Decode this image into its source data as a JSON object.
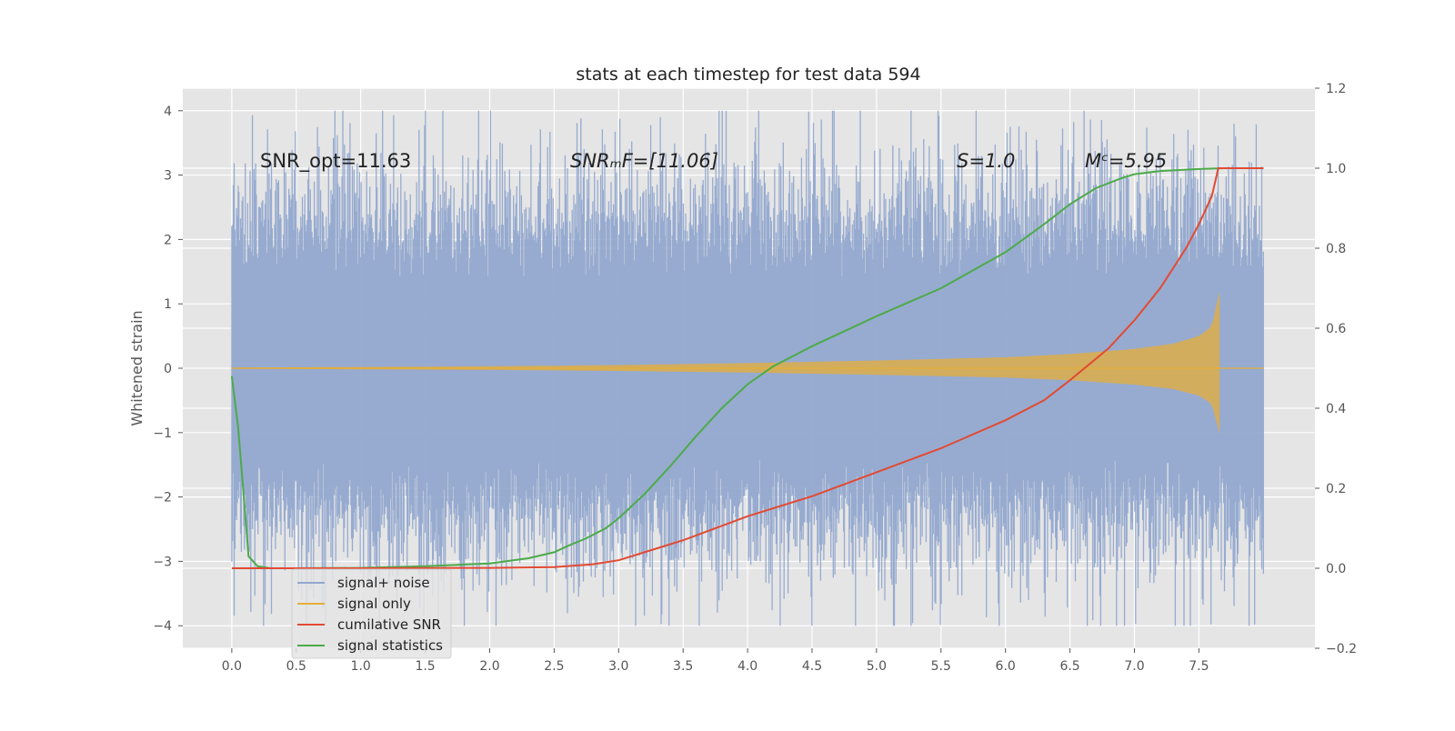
{
  "chart_data": {
    "type": "line",
    "title": "stats at each timestep for test data 594",
    "ylabel": "Whitened strain",
    "xlim": [
      -0.38,
      8.4
    ],
    "ylim": [
      -4.35,
      4.35
    ],
    "y2lim": [
      -0.2,
      1.2
    ],
    "xticks": [
      "0.0",
      "0.5",
      "1.0",
      "1.5",
      "2.0",
      "2.5",
      "3.0",
      "3.5",
      "4.0",
      "4.5",
      "5.0",
      "5.5",
      "6.0",
      "6.5",
      "7.0",
      "7.5"
    ],
    "xtick_values": [
      0.0,
      0.5,
      1.0,
      1.5,
      2.0,
      2.5,
      3.0,
      3.5,
      4.0,
      4.5,
      5.0,
      5.5,
      6.0,
      6.5,
      7.0,
      7.5
    ],
    "yticks": [
      "4",
      "3",
      "2",
      "1",
      "0",
      "−1",
      "−2",
      "−3",
      "−4"
    ],
    "ytick_values": [
      4,
      3,
      2,
      1,
      0,
      -1,
      -2,
      -3,
      -4
    ],
    "y2ticks": [
      "1.2",
      "1.0",
      "0.8",
      "0.6",
      "0.4",
      "0.2",
      "0.0",
      "−0.2"
    ],
    "y2tick_values": [
      1.2,
      1.0,
      0.8,
      0.6,
      0.4,
      0.2,
      0.0,
      -0.2
    ],
    "grid": true,
    "legend_position": "lower-left",
    "annotations": [
      {
        "text": "SNR_opt=11.63",
        "x": 0.2,
        "y": 3.1
      },
      {
        "text": "SNRₘF=[11.06]",
        "x": 2.6,
        "y": 3.1
      },
      {
        "text": "S=1.0",
        "x": 5.6,
        "y": 3.1
      },
      {
        "text": "Mᶜ=5.95",
        "x": 6.6,
        "y": 3.1
      }
    ],
    "series": [
      {
        "name": "signal+ noise",
        "color": "#92a8cf",
        "axis": "left",
        "description": "noisy strain, roughly |y| within 4, t from 0 to 8",
        "t_range": [
          0.0,
          8.0
        ],
        "extent": 3.0
      },
      {
        "name": "signal only",
        "color": "#e5ae38",
        "axis": "left",
        "t_range": [
          0.0,
          7.66
        ],
        "envelope_t": [
          0.0,
          1.0,
          2.0,
          3.0,
          4.0,
          5.0,
          6.0,
          6.5,
          7.0,
          7.3,
          7.5,
          7.6,
          7.66
        ],
        "envelope_amp": [
          0.01,
          0.02,
          0.03,
          0.05,
          0.08,
          0.12,
          0.17,
          0.22,
          0.3,
          0.38,
          0.5,
          0.65,
          1.2
        ]
      },
      {
        "name": "cumilative SNR",
        "color": "#e24a33",
        "axis": "right",
        "t": [
          0.0,
          1.0,
          2.0,
          2.5,
          2.8,
          3.0,
          3.3,
          3.5,
          4.0,
          4.5,
          5.0,
          5.5,
          6.0,
          6.3,
          6.5,
          6.8,
          7.0,
          7.2,
          7.4,
          7.5,
          7.6,
          7.65,
          7.7,
          8.0
        ],
        "values": [
          0.0,
          0.0,
          0.001,
          0.003,
          0.01,
          0.02,
          0.05,
          0.07,
          0.13,
          0.18,
          0.24,
          0.3,
          0.37,
          0.42,
          0.47,
          0.55,
          0.62,
          0.7,
          0.8,
          0.86,
          0.93,
          1.0,
          1.0,
          1.0
        ]
      },
      {
        "name": "signal statistics",
        "color": "#4daa4a",
        "axis": "right",
        "t": [
          0.0,
          0.05,
          0.1,
          0.13,
          0.2,
          0.3,
          0.5,
          1.0,
          1.5,
          2.0,
          2.3,
          2.5,
          2.6,
          2.75,
          2.9,
          3.0,
          3.2,
          3.4,
          3.6,
          3.8,
          4.0,
          4.2,
          4.5,
          5.0,
          5.5,
          6.0,
          6.3,
          6.5,
          6.7,
          6.9,
          7.0,
          7.2,
          7.5,
          7.7,
          8.0
        ],
        "values": [
          0.48,
          0.35,
          0.15,
          0.03,
          0.005,
          0.0,
          0.0,
          0.001,
          0.005,
          0.012,
          0.025,
          0.04,
          0.055,
          0.075,
          0.1,
          0.125,
          0.185,
          0.255,
          0.33,
          0.4,
          0.46,
          0.505,
          0.555,
          0.63,
          0.7,
          0.79,
          0.86,
          0.91,
          0.95,
          0.975,
          0.985,
          0.993,
          0.998,
          1.0,
          1.0
        ]
      }
    ]
  }
}
